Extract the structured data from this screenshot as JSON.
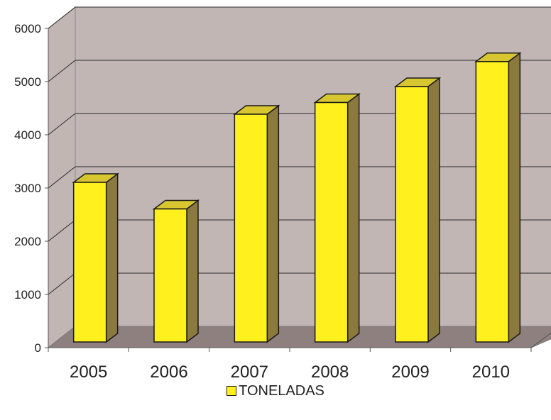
{
  "chart_data": {
    "type": "bar",
    "title": "",
    "xlabel": "",
    "ylabel": "",
    "categories": [
      "2005",
      "2006",
      "2007",
      "2008",
      "2009",
      "2010"
    ],
    "series": [
      {
        "name": "TONELADAS",
        "values": [
          3000,
          2500,
          4280,
          4500,
          4800,
          5270
        ]
      }
    ],
    "ylim": [
      0,
      6000
    ],
    "yticks": [
      "0",
      "1000",
      "2000",
      "3000",
      "4000",
      "5000",
      "6000"
    ],
    "grid": true,
    "legend_position": "bottom",
    "style_3d": true
  },
  "colors": {
    "wall": "#c2b6b5",
    "floor": "#8d807f",
    "bar_front": "#fff01e",
    "bar_top": "#d8c630",
    "bar_side": "#8b7a3e",
    "outline": "#1a1a1a"
  }
}
